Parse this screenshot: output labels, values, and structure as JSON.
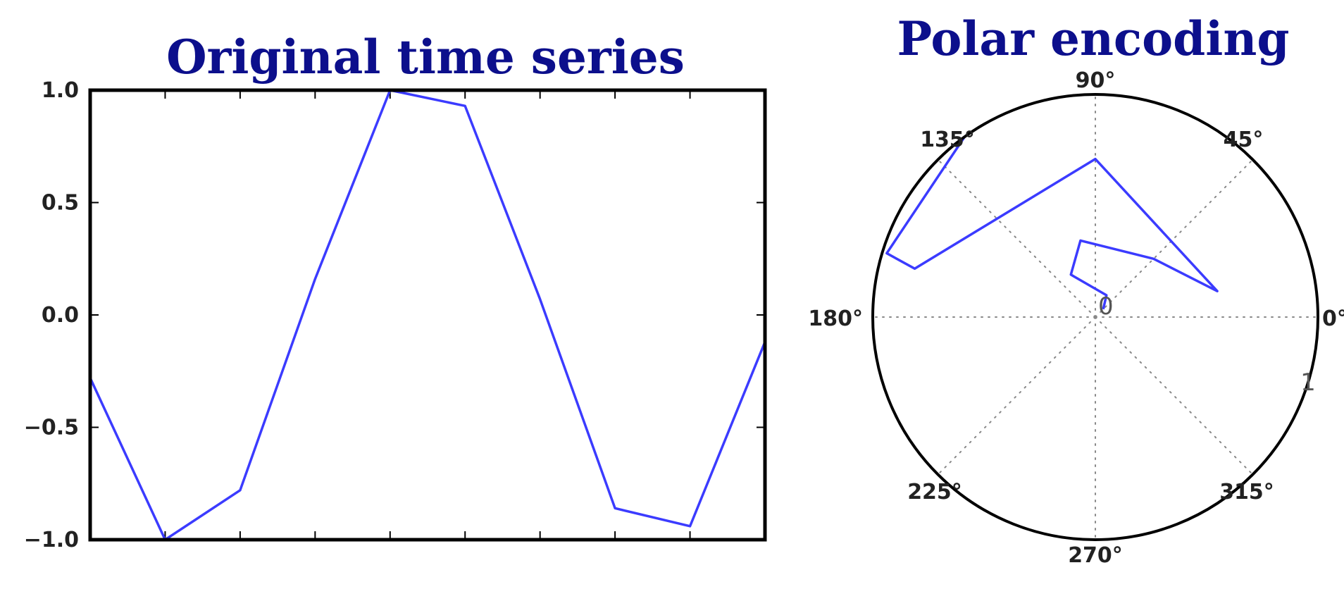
{
  "chart_data": [
    {
      "type": "line",
      "title": "Original time series",
      "xlabel": "",
      "ylabel": "",
      "xlim": [
        0,
        9
      ],
      "ylim": [
        -1.0,
        1.0
      ],
      "x_ticks": [
        0,
        1,
        2,
        3,
        4,
        5,
        6,
        7,
        8,
        9
      ],
      "y_ticks": [
        1.0,
        0.5,
        0.0,
        -0.5,
        -1.0
      ],
      "y_tick_labels": [
        "1.0",
        "0.5",
        "0.0",
        "−0.5",
        "−1.0"
      ],
      "grid": false,
      "series": [
        {
          "color": "#3b3bff",
          "x": [
            0,
            1,
            2,
            3,
            4,
            5,
            6,
            7,
            8,
            9
          ],
          "values": [
            -0.28,
            -1.0,
            -0.78,
            0.16,
            1.0,
            0.93,
            0.07,
            -0.86,
            -0.94,
            -0.12
          ]
        }
      ]
    },
    {
      "type": "line",
      "subtype": "polar",
      "title": "Polar encoding",
      "angle_tick_labels": [
        "0°",
        "45°",
        "90°",
        "135°",
        "180°",
        "225°",
        "270°",
        "315°"
      ],
      "radial_tick_labels": [
        "0",
        "1"
      ],
      "rlim": [
        0,
        1
      ],
      "grid": true,
      "series": [
        {
          "color": "#3b3bff",
          "theta_deg": [
            45,
            63,
            120,
            101,
            45,
            12,
            90,
            165,
            163,
            126
          ],
          "r": [
            0.05,
            0.11,
            0.22,
            0.35,
            0.37,
            0.56,
            0.71,
            0.84,
            0.98,
            1.0
          ]
        }
      ]
    }
  ]
}
